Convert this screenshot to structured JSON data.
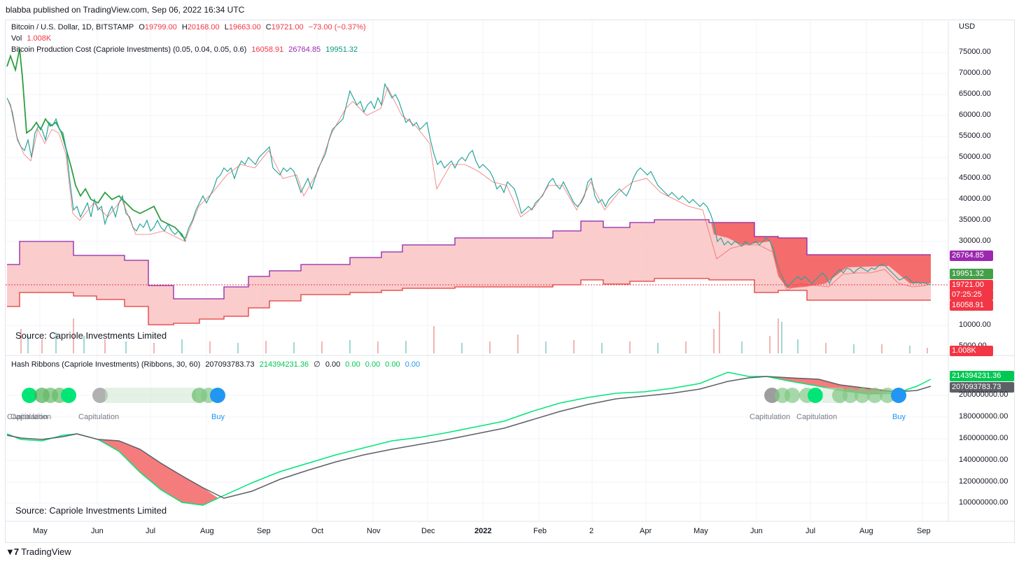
{
  "header": {
    "published": "blabba published on TradingView.com, Sep 06, 2022 16:34 UTC"
  },
  "main_legend": {
    "symbol": "Bitcoin / U.S. Dollar, 1D, BITSTAMP",
    "o_label": "O",
    "o_value": "19799.00",
    "h_label": "H",
    "h_value": "20168.00",
    "l_label": "L",
    "l_value": "19663.00",
    "c_label": "C",
    "c_value": "19721.00",
    "change": "−73.00 (−0.37%)",
    "vol_label": "Vol",
    "vol_value": "1.008K",
    "indicator": "Bitcoin Production Cost (Capriole Investments) (0.05, 0.04, 0.05, 0.6)",
    "ind_v1": "16058.91",
    "ind_v2": "26764.85",
    "ind_v3": "19951.32"
  },
  "hash_legend": {
    "indicator": "Hash Ribbons (Capriole Investments) (Ribbons, 30, 60)",
    "v1": "207093783.73",
    "v2": "214394231.36",
    "sym": "∅",
    "v3": "0.00",
    "v4": "0.00",
    "v5": "0.00",
    "v6": "0.00",
    "v7": "0.00"
  },
  "price_axis": {
    "currency": "USD",
    "ticks": [
      "75000.00",
      "70000.00",
      "65000.00",
      "60000.00",
      "55000.00",
      "50000.00",
      "45000.00",
      "40000.00",
      "35000.00",
      "30000.00",
      "10000.00",
      "5000.00"
    ]
  },
  "price_tags": {
    "upper": "26764.85",
    "mid": "19951.32",
    "close": "19721.00",
    "countdown": "07:25:25",
    "lower": "16058.91",
    "vol": "1.008K"
  },
  "hash_axis": {
    "ticks": [
      "200000000.00",
      "180000000.00",
      "160000000.00",
      "140000000.00",
      "120000000.00",
      "100000000.00"
    ],
    "tag_green": "214394231.36",
    "tag_gray": "207093783.73"
  },
  "time_axis": [
    "May",
    "Jun",
    "Jul",
    "Aug",
    "Sep",
    "Oct",
    "Nov",
    "Dec",
    "2022",
    "Feb",
    "2",
    "Apr",
    "May",
    "Jun",
    "Jul",
    "Aug",
    "Sep"
  ],
  "source_label": "Source: Capriole Investments Limited",
  "signals": {
    "capitulation": "Capitulation",
    "buy": "Buy"
  },
  "footer": {
    "brand": "TradingView"
  },
  "colors": {
    "up": "#089981",
    "down": "#f23645",
    "band": "#f9c3c3",
    "hash_fast": "#00e676",
    "hash_slow": "#555555",
    "buy": "#2196f3"
  }
}
